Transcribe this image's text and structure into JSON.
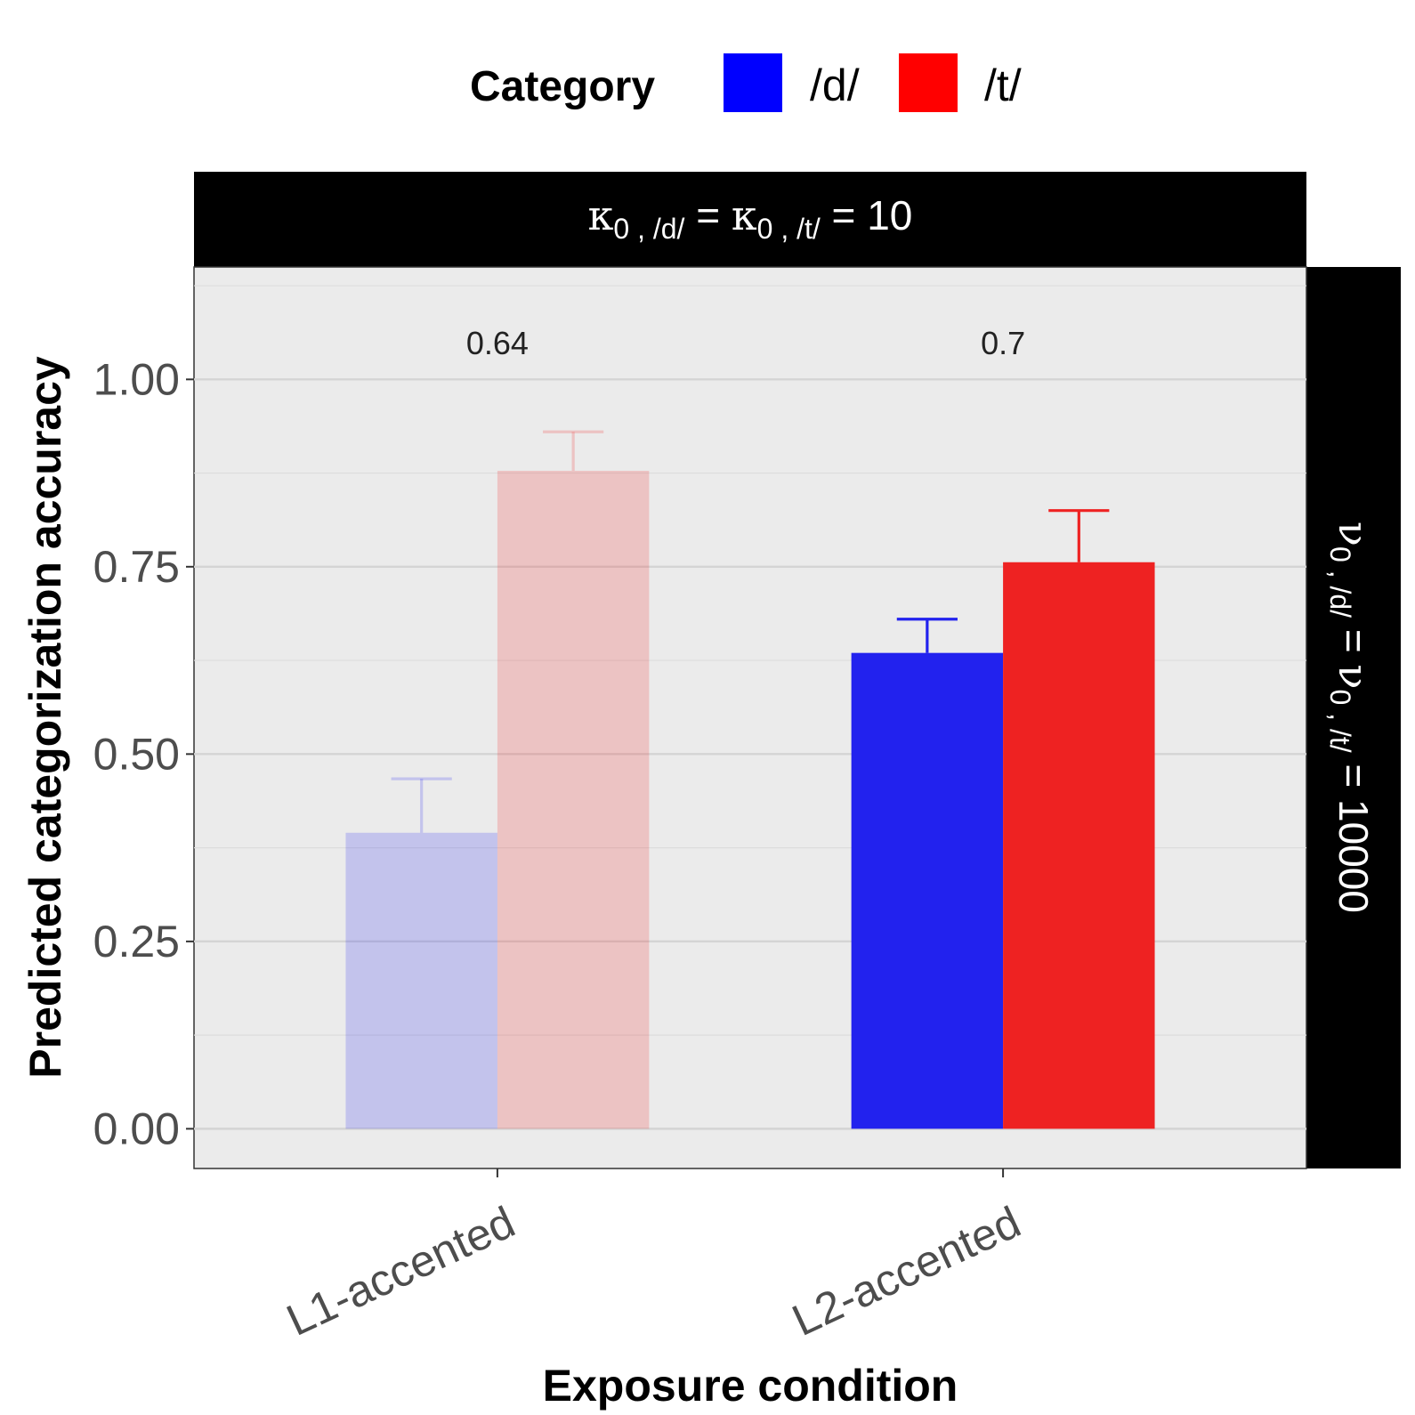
{
  "chart_data": {
    "type": "bar",
    "categories": [
      "L1-accented",
      "L2-accented"
    ],
    "series": [
      {
        "name": "/d/",
        "color": "#2222ee",
        "values": [
          0.395,
          0.635
        ],
        "error_upper": [
          0.467,
          0.68
        ],
        "opacity": [
          0.2,
          1.0
        ]
      },
      {
        "name": "/t/",
        "color": "#ee2222",
        "values": [
          0.878,
          0.756
        ],
        "error_upper": [
          0.93,
          0.825
        ],
        "opacity": [
          0.2,
          1.0
        ]
      }
    ],
    "group_labels": [
      "0.64",
      "0.7"
    ],
    "xlabel": "Exposure condition",
    "ylabel": "Predicted categorization accuracy",
    "ylim": [
      -0.053,
      1.15
    ],
    "yticks": [
      0,
      0.25,
      0.5,
      0.75,
      1.0
    ],
    "ytick_labels": [
      "0.00",
      "0.25",
      "0.50",
      "0.75",
      "1.00"
    ],
    "grid": true,
    "legend": {
      "title": "Category",
      "position": "top",
      "entries": [
        {
          "label": "/d/",
          "color": "#0000ff"
        },
        {
          "label": "/t/",
          "color": "#ff0000"
        }
      ]
    },
    "facet_top": {
      "kappa_symbol": "κ",
      "sub": "0 , /d/",
      "eq": " = ",
      "kappa_symbol_2": "κ",
      "sub2": "0 , /t/",
      "value_text": " = 10"
    },
    "facet_right": {
      "nu_symbol": "ν",
      "sub": "0 , /d/",
      "eq": " = ",
      "nu_symbol_2": "ν",
      "sub2": "0 , /t/",
      "value_text": " = 10000"
    }
  }
}
